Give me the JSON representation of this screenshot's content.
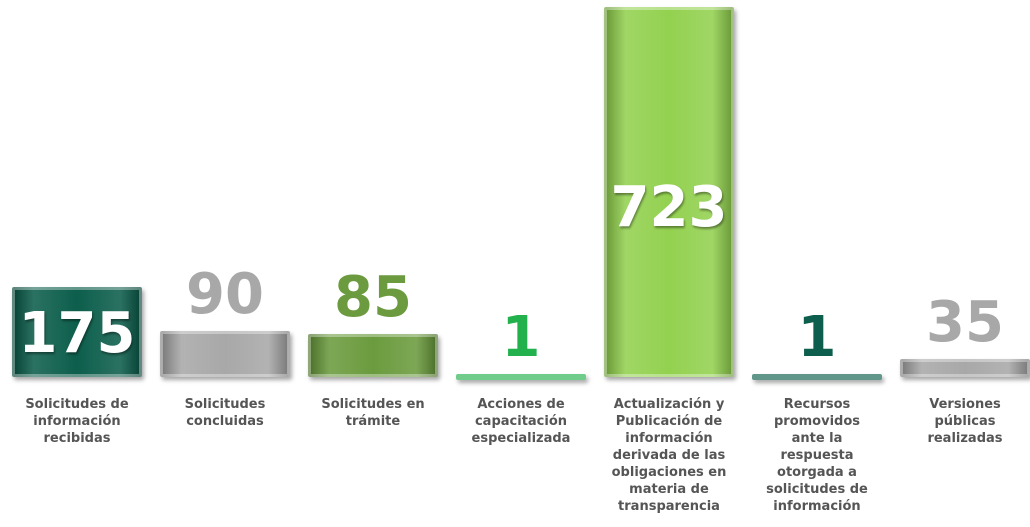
{
  "chart_data": {
    "type": "bar",
    "categories": [
      "Solicitudes de información recibidas",
      "Solicitudes concluidas",
      "Solicitudes en trámite",
      "Acciones de capacitación especializada",
      "Actualización y Publicación de información derivada de las obligaciones en materia de transparencia",
      "Recursos promovidos ante la respuesta otorgada a solicitudes de información",
      "Versiones públicas realizadas"
    ],
    "values": [
      175,
      90,
      85,
      1,
      723,
      1,
      35
    ],
    "colors": [
      "#0d5e4c",
      "#a8a8a8",
      "#6b9b3e",
      "#22b14c",
      "#93d150",
      "#0d5e4c",
      "#a8a8a8"
    ]
  }
}
